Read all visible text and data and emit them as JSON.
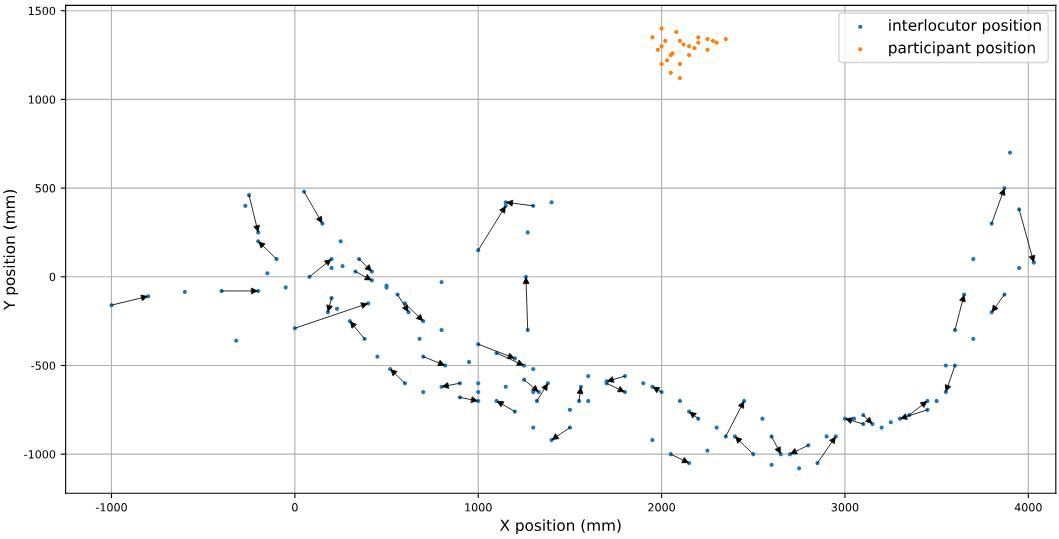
{
  "chart_data": {
    "type": "scatter",
    "xlabel": "X position (mm)",
    "ylabel": "Y position (mm)",
    "xlim": [
      -1250,
      4150
    ],
    "ylim": [
      -1220,
      1530
    ],
    "xticks": [
      -1000,
      0,
      1000,
      2000,
      3000,
      4000
    ],
    "yticks": [
      -1000,
      -500,
      0,
      500,
      1000,
      1500
    ],
    "grid": true,
    "legend": "top right",
    "marker": "circle",
    "series": [
      {
        "name": "interlocutor position",
        "color": "#1f77b4",
        "x": [
          -1000,
          -800,
          -600,
          -400,
          -200,
          -50,
          80,
          200,
          260,
          330,
          420,
          500,
          560,
          620,
          680,
          700,
          820,
          950,
          1100,
          1250,
          1300,
          1320,
          1380,
          1300,
          1270,
          1260,
          1270,
          1300,
          1150,
          1000,
          900,
          1000,
          1150,
          1250,
          1330,
          1500,
          1550,
          1560,
          1600,
          1700,
          1800,
          1950,
          2050,
          2150,
          2250,
          2350,
          2450,
          2550,
          2600,
          2650,
          2750,
          2850,
          2950,
          3050,
          3100,
          3150,
          3250,
          3350,
          3450,
          3550,
          3600,
          3650,
          3700,
          3800,
          3870,
          3900,
          3950,
          4030,
          3950,
          3870,
          3800,
          3700,
          3600,
          3550,
          3500,
          3450,
          3300,
          3200,
          3100,
          3000,
          2900,
          2800,
          2700,
          2600,
          2500,
          2400,
          2300,
          2200,
          2150,
          2100,
          2000,
          1950,
          1900,
          1800,
          1700,
          1600,
          1500,
          1400,
          1300,
          1200,
          1100,
          1000,
          900,
          800,
          700,
          600,
          520,
          450,
          380,
          300,
          230,
          200,
          180,
          200,
          -100,
          -200,
          -270,
          -250,
          -200,
          -150,
          50,
          150,
          250,
          350,
          420,
          500,
          600,
          700,
          800,
          1000,
          1200,
          -320,
          0,
          400,
          800,
          1000,
          1150,
          1400
        ],
        "values": [
          -160,
          -110,
          -85,
          -80,
          -80,
          -60,
          0,
          100,
          60,
          30,
          -20,
          -60,
          -100,
          -200,
          -350,
          -450,
          -500,
          -480,
          -430,
          -500,
          -650,
          -700,
          -600,
          -520,
          -300,
          0,
          250,
          400,
          420,
          -600,
          -680,
          -700,
          -620,
          -580,
          -650,
          -750,
          -700,
          -620,
          -560,
          -600,
          -650,
          -920,
          -1000,
          -1050,
          -980,
          -900,
          -700,
          -800,
          -900,
          -1000,
          -1080,
          -1050,
          -900,
          -800,
          -780,
          -830,
          -820,
          -780,
          -700,
          -500,
          -300,
          -100,
          100,
          300,
          500,
          700,
          380,
          80,
          50,
          -100,
          -200,
          -350,
          -500,
          -650,
          -700,
          -750,
          -800,
          -850,
          -830,
          -800,
          -900,
          -950,
          -1000,
          -1060,
          -1000,
          -900,
          -850,
          -800,
          -760,
          -700,
          -650,
          -620,
          -600,
          -560,
          -590,
          -700,
          -850,
          -920,
          -850,
          -760,
          -700,
          -650,
          -600,
          -620,
          -650,
          -600,
          -520,
          -450,
          -350,
          -250,
          -180,
          -120,
          -200,
          50,
          100,
          200,
          400,
          460,
          250,
          20,
          480,
          300,
          200,
          100,
          30,
          -50,
          -150,
          -250,
          -300,
          -380,
          -460,
          -360,
          -290,
          -150,
          -30,
          150,
          400,
          420
        ]
      },
      {
        "name": "participant position",
        "color": "#ff7f0e",
        "x": [
          1950,
          2000,
          2050,
          2100,
          2150,
          2200,
          2250,
          2300,
          2350,
          2000,
          2050,
          2100,
          2150,
          2250,
          2080,
          2000,
          2030,
          2100,
          1980,
          2200,
          2120,
          2060,
          2020,
          2180,
          2280
        ],
        "values": [
          1350,
          1300,
          1250,
          1330,
          1300,
          1320,
          1340,
          1320,
          1340,
          1200,
          1150,
          1120,
          1250,
          1280,
          1380,
          1400,
          1220,
          1200,
          1280,
          1350,
          1310,
          1260,
          1330,
          1290,
          1330
        ]
      }
    ]
  }
}
